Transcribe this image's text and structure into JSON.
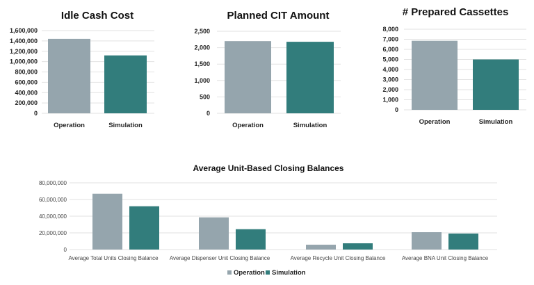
{
  "colors": {
    "Operation": "#95a5ad",
    "Simulation": "#327d7c",
    "grid": "#e2e2e2"
  },
  "chart_data": [
    {
      "type": "bar",
      "title": "Idle Cash Cost",
      "categories": [
        "Operation",
        "Simulation"
      ],
      "values": [
        1440000,
        1120000
      ],
      "ylim": [
        0,
        1600000
      ],
      "yticks": [
        "0",
        "200,000",
        "400,000",
        "600,000",
        "800,000",
        "1,000,000",
        "1,200,000",
        "1,400,000",
        "1,600,000"
      ],
      "grid": true
    },
    {
      "type": "bar",
      "title": "Planned CIT Amount",
      "categories": [
        "Operation",
        "Simulation"
      ],
      "values": [
        2200,
        2180
      ],
      "ylim": [
        0,
        2500
      ],
      "yticks": [
        "0",
        "500",
        "1,000",
        "1,500",
        "2,000",
        "2,500"
      ],
      "grid": true
    },
    {
      "type": "bar",
      "title": "# Prepared Cassettes",
      "categories": [
        "Operation",
        "Simulation"
      ],
      "values": [
        6850,
        5000
      ],
      "ylim": [
        0,
        8000
      ],
      "yticks": [
        "0",
        "1,000",
        "2,000",
        "3,000",
        "4,000",
        "5,000",
        "6,000",
        "7,000",
        "8,000"
      ],
      "grid": true
    },
    {
      "type": "bar",
      "title": "Average Unit-Based Closing Balances",
      "categories": [
        "Average Total Units Closing Balance",
        "Average Dispenser Unit Closing Balance",
        "Average Recycle Unit Closing Balance",
        "Average BNA Unit Closing Balance"
      ],
      "series": [
        {
          "name": "Operation",
          "values": [
            66900000,
            38600000,
            5800000,
            20800000
          ]
        },
        {
          "name": "Simulation",
          "values": [
            51900000,
            24400000,
            7500000,
            19200000
          ]
        }
      ],
      "ylim": [
        0,
        80000000
      ],
      "yticks": [
        "0",
        "20,000,000",
        "40,000,000",
        "60,000,000",
        "80,000,000"
      ],
      "grid": true,
      "legend": "bottom"
    }
  ]
}
